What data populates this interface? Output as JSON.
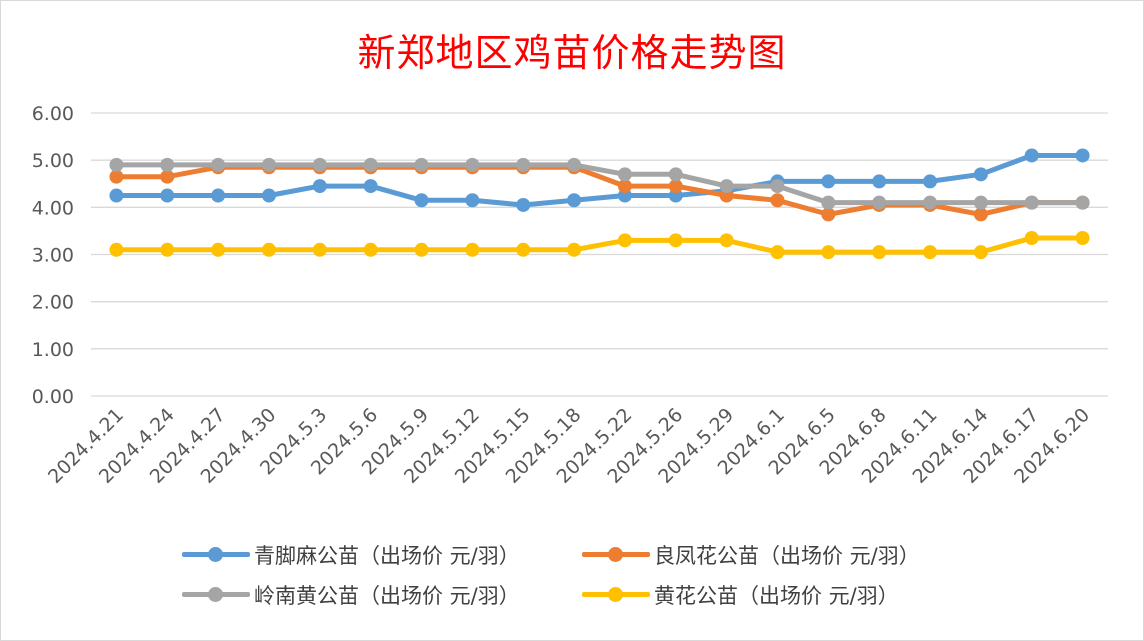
{
  "chart_data": {
    "type": "line",
    "title": "新郑地区鸡苗价格走势图",
    "categories": [
      "2024.4.21",
      "2024.4.24",
      "2024.4.27",
      "2024.4.30",
      "2024.5.3",
      "2024.5.6",
      "2024.5.9",
      "2024.5.12",
      "2024.5.15",
      "2024.5.18",
      "2024.5.22",
      "2024.5.26",
      "2024.5.29",
      "2024.6.1",
      "2024.6.5",
      "2024.6.8",
      "2024.6.11",
      "2024.6.14",
      "2024.6.17",
      "2024.6.20"
    ],
    "y_ticks": [
      "0.00",
      "1.00",
      "2.00",
      "3.00",
      "4.00",
      "5.00",
      "6.00"
    ],
    "ylim": [
      0,
      6
    ],
    "grid": true,
    "legend_position": "bottom",
    "series": [
      {
        "name": "青脚麻公苗（出场价 元/羽）",
        "color": "#5b9bd5",
        "values": [
          4.25,
          4.25,
          4.25,
          4.25,
          4.45,
          4.45,
          4.15,
          4.15,
          4.05,
          4.15,
          4.25,
          4.25,
          4.35,
          4.55,
          4.55,
          4.55,
          4.55,
          4.7,
          5.1,
          5.1
        ]
      },
      {
        "name": "良凤花公苗（出场价 元/羽）",
        "color": "#ed7d31",
        "values": [
          4.65,
          4.65,
          4.85,
          4.85,
          4.85,
          4.85,
          4.85,
          4.85,
          4.85,
          4.85,
          4.45,
          4.45,
          4.25,
          4.15,
          3.85,
          4.05,
          4.05,
          3.85,
          4.1,
          4.1
        ]
      },
      {
        "name": "岭南黄公苗（出场价 元/羽）",
        "color": "#a5a5a5",
        "values": [
          4.9,
          4.9,
          4.9,
          4.9,
          4.9,
          4.9,
          4.9,
          4.9,
          4.9,
          4.9,
          4.7,
          4.7,
          4.45,
          4.45,
          4.1,
          4.1,
          4.1,
          4.1,
          4.1,
          4.1
        ]
      },
      {
        "name": "黄花公苗（出场价 元/羽）",
        "color": "#ffc000",
        "values": [
          3.1,
          3.1,
          3.1,
          3.1,
          3.1,
          3.1,
          3.1,
          3.1,
          3.1,
          3.1,
          3.3,
          3.3,
          3.3,
          3.05,
          3.05,
          3.05,
          3.05,
          3.05,
          3.35,
          3.35
        ]
      }
    ]
  }
}
